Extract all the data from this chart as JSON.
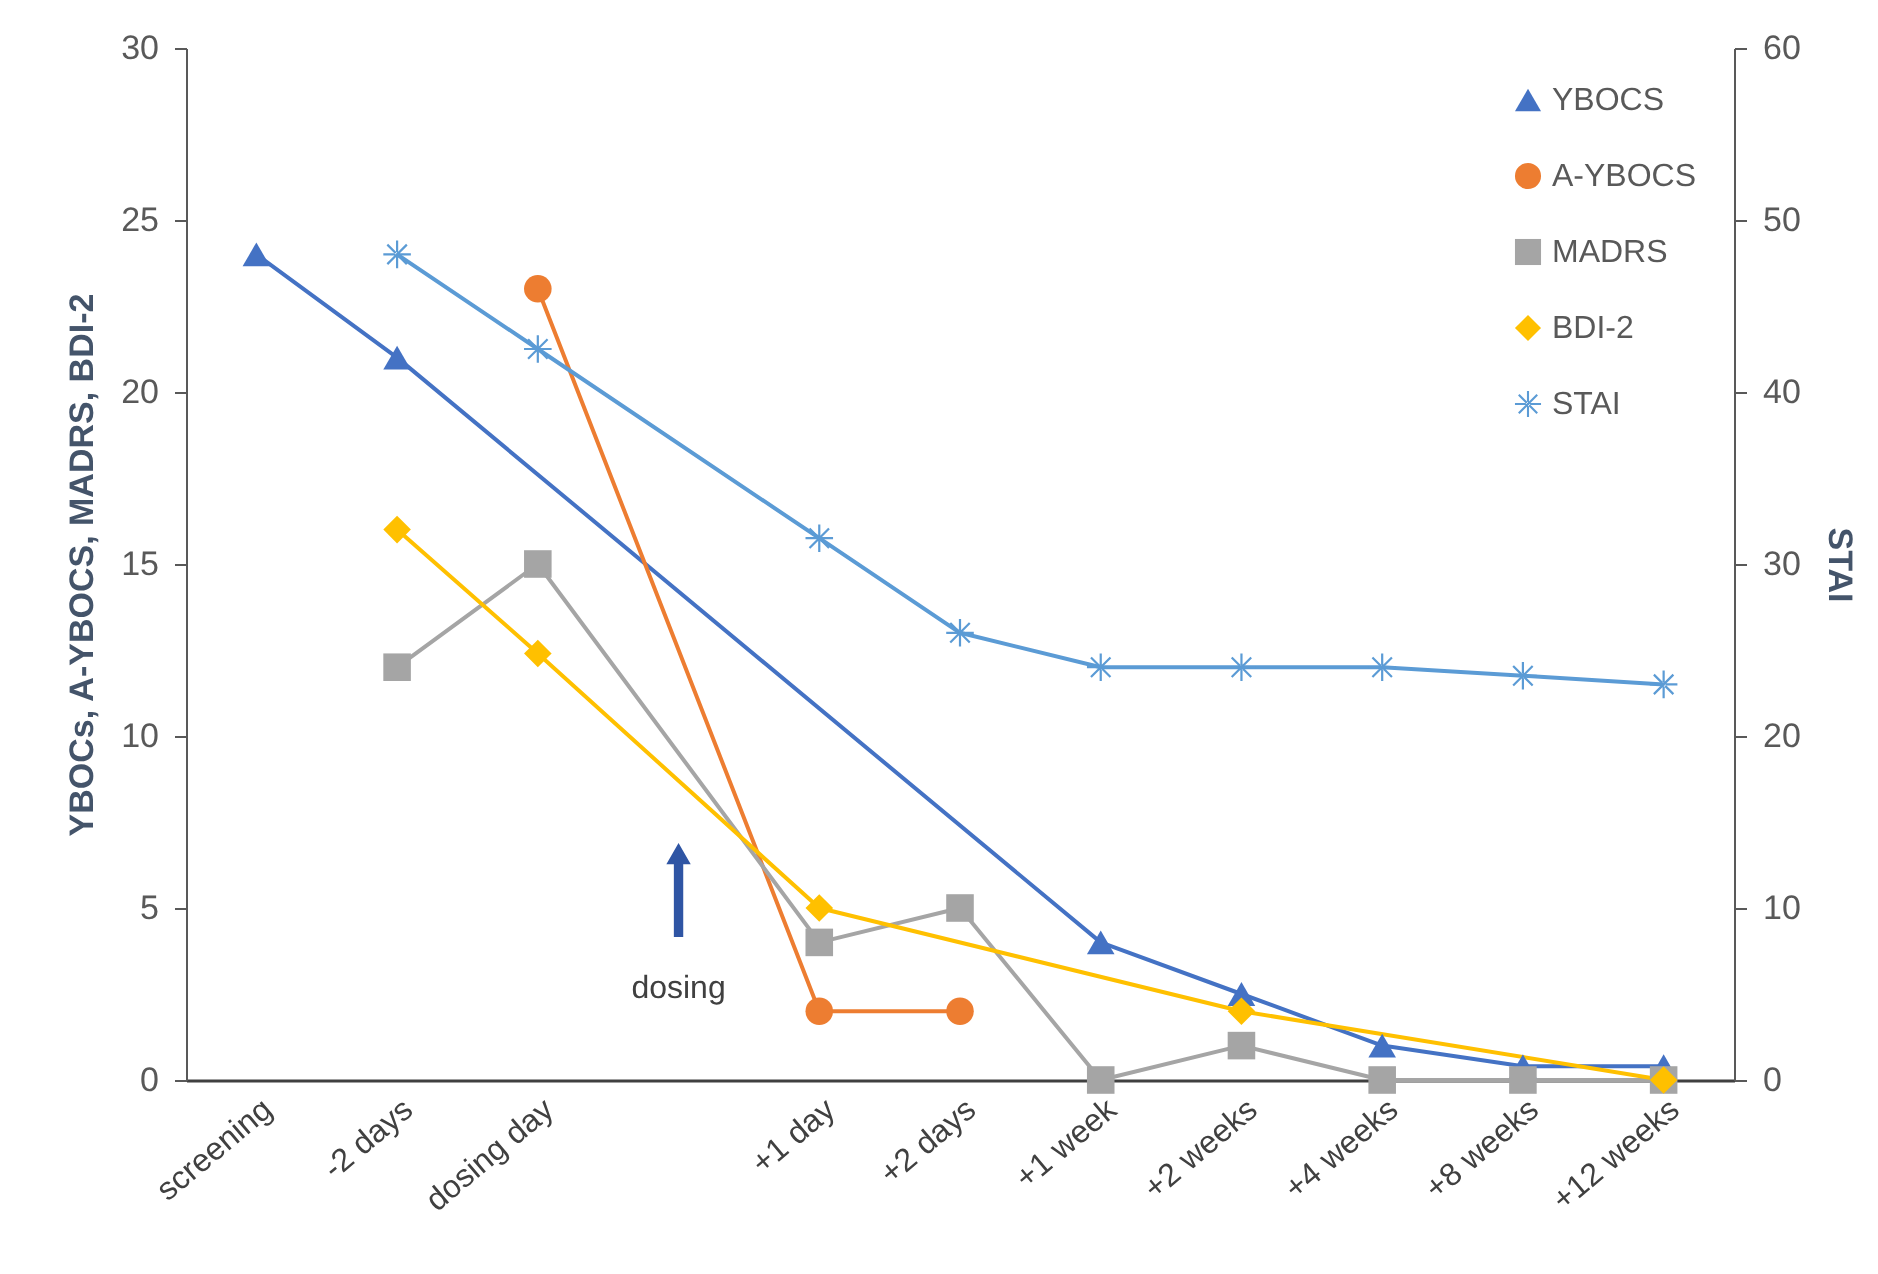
{
  "chart_data": {
    "type": "line",
    "xlabel": null,
    "ylabel": "YBOCs, A-YBOCS, MADRS, BDI-2",
    "y2label": "STAI",
    "categories": [
      "screening",
      "-2 days",
      "dosing day",
      null,
      "+1 day",
      "+2 days",
      "+1 week",
      "+2 weeks",
      "+4 weeks",
      "+8 weeks",
      "+12 weeks"
    ],
    "series": [
      {
        "name": "YBOCS",
        "color": "#4472c4",
        "marker": "triangle",
        "values": [
          24,
          21,
          null,
          null,
          null,
          null,
          4,
          2.5,
          1,
          0.4,
          0.4
        ]
      },
      {
        "name": "A-YBOCS",
        "color": "#ed7d31",
        "marker": "circle",
        "values": [
          null,
          null,
          23,
          null,
          2,
          2,
          null,
          null,
          null,
          null,
          null
        ]
      },
      {
        "name": "MADRS",
        "color": "#a5a5a5",
        "marker": "square",
        "values": [
          null,
          12,
          15,
          null,
          4,
          5,
          0,
          1,
          0,
          0,
          0
        ]
      },
      {
        "name": "BDI-2",
        "color": "#ffc000",
        "marker": "diamond",
        "values": [
          null,
          16,
          12.4,
          null,
          5,
          null,
          null,
          2,
          null,
          null,
          0
        ]
      },
      {
        "name": "STAI",
        "color": "#5b9bd5",
        "marker": "star",
        "axis": "y2",
        "values": [
          null,
          48,
          42.5,
          null,
          31.5,
          26,
          24,
          24,
          24,
          23.5,
          23
        ]
      }
    ],
    "ylim": [
      0,
      30
    ],
    "yticks": [
      0,
      5,
      10,
      15,
      20,
      25,
      30
    ],
    "y2lim": [
      0,
      60
    ],
    "y2ticks": [
      0,
      10,
      20,
      30,
      40,
      50,
      60
    ],
    "grid": false,
    "legend": "top right",
    "annotations": [
      "dosing"
    ]
  }
}
